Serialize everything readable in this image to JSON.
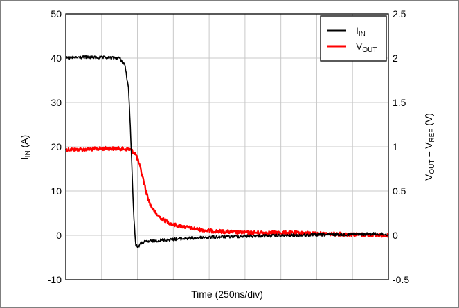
{
  "chart_data": {
    "type": "line",
    "xlabel": "Time (250ns/div)",
    "ylabel_left": {
      "main": "I",
      "sub": "IN",
      "unit": " (A)"
    },
    "ylabel_right": {
      "a": "V",
      "a_sub": "OUT",
      "sep": " – V",
      "b_sub": "REF",
      "unit": " (V)"
    },
    "ylim_left": [
      -10,
      50
    ],
    "ylim_right": [
      -0.5,
      2.5
    ],
    "yticks_left": [
      "50",
      "40",
      "30",
      "20",
      "10",
      "0",
      "-10"
    ],
    "yticks_right": [
      "2.5",
      "2",
      "1.5",
      "1",
      "0.5",
      "0",
      "-0.5"
    ],
    "x_divisions": 9,
    "grid": true,
    "legend_position": "top-right",
    "series": [
      {
        "name": "I_IN",
        "legend_main": "I",
        "legend_sub": "IN",
        "axis": "left",
        "color": "#000000",
        "x_div": [
          0,
          0.5,
          1.0,
          1.5,
          1.65,
          1.75,
          1.8,
          1.85,
          1.9,
          1.95,
          2.0,
          2.05,
          2.1,
          2.2,
          2.3,
          2.5,
          2.8,
          3.2,
          3.8,
          4.5,
          5.5,
          6.5,
          7.5,
          8.5,
          9.0
        ],
        "values": [
          40,
          40.2,
          40.1,
          40,
          38.5,
          33,
          25,
          14,
          4,
          -2.2,
          -2.6,
          -2.3,
          -1.8,
          -1.5,
          -1.4,
          -1.2,
          -1.0,
          -0.8,
          -0.5,
          -0.3,
          -0.1,
          0.0,
          0.2,
          0.3,
          0.2
        ]
      },
      {
        "name": "V_OUT",
        "legend_main": "V",
        "legend_sub": "OUT",
        "axis": "right",
        "color": "#ff0000",
        "x_div": [
          0,
          0.5,
          1.0,
          1.5,
          1.8,
          1.95,
          2.05,
          2.15,
          2.25,
          2.35,
          2.5,
          2.7,
          3.0,
          3.5,
          4.0,
          5.0,
          6.0,
          7.0,
          8.0,
          9.0
        ],
        "values": [
          0.97,
          0.97,
          0.98,
          0.98,
          0.97,
          0.92,
          0.8,
          0.65,
          0.48,
          0.35,
          0.25,
          0.18,
          0.12,
          0.08,
          0.05,
          0.03,
          0.03,
          0.02,
          0.01,
          0.0
        ]
      }
    ]
  }
}
